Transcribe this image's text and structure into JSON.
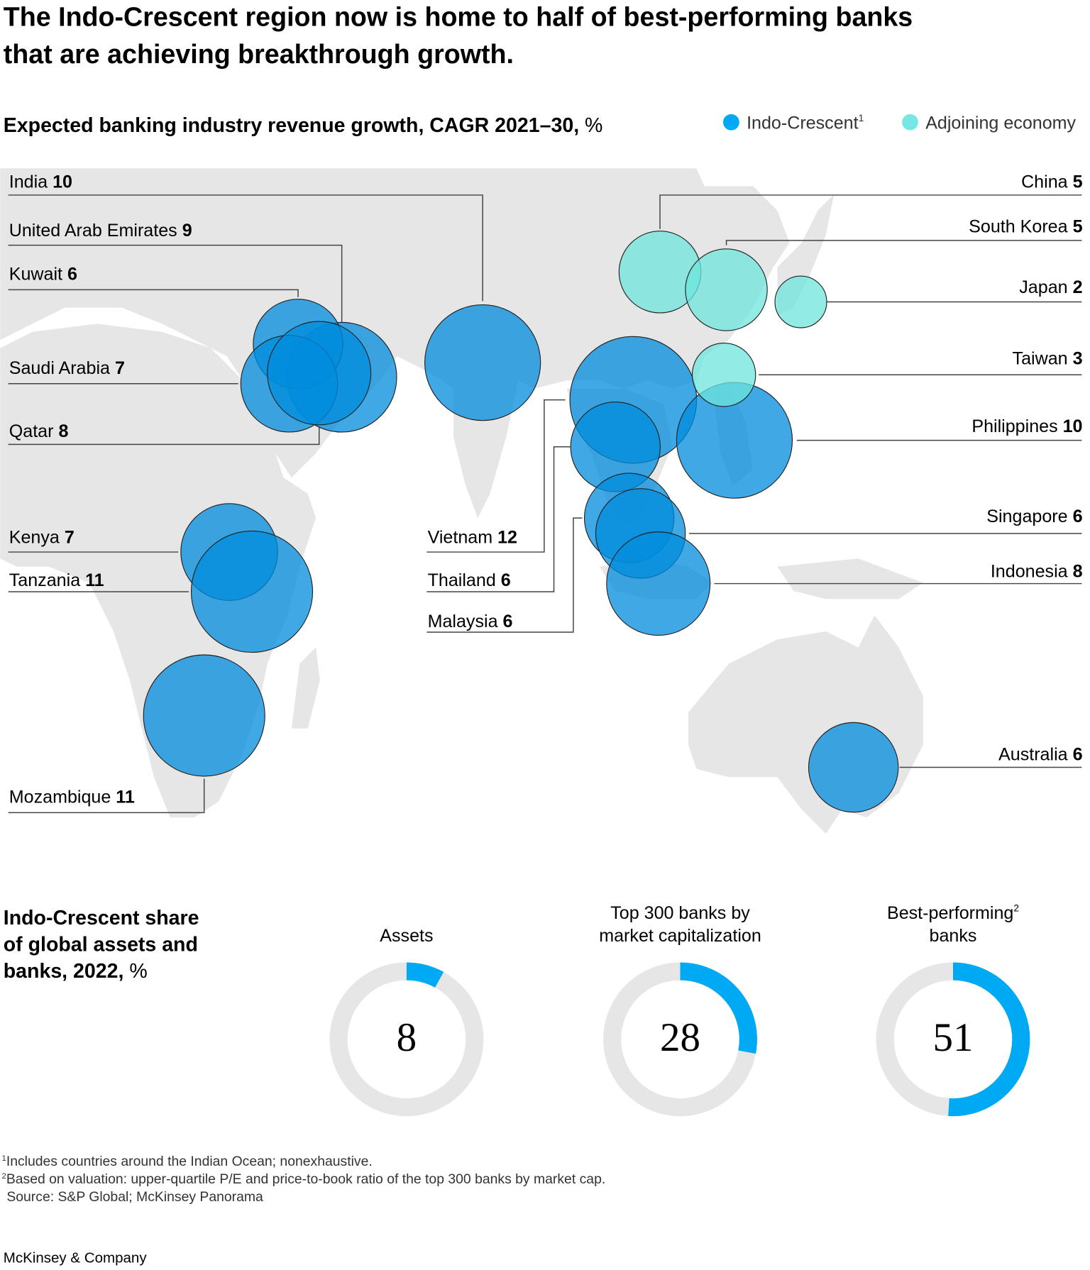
{
  "title_line1": "The Indo-Crescent region now is home to half of best-performing banks",
  "title_line2": "that are achieving breakthrough growth.",
  "map_subtitle_bold": "Expected banking industry revenue growth, CAGR 2021–30,",
  "map_subtitle_unit": " %",
  "legend": [
    {
      "label": "Indo-Crescent",
      "sup": "1",
      "color": "#00a9f4"
    },
    {
      "label": "Adjoining economy",
      "sup": "",
      "color": "#76e8e4"
    }
  ],
  "colors": {
    "indo": "#1fa9ec",
    "adjoining": "#76e8e4",
    "land": "#e6e6e6",
    "ring": "#e6e6e6",
    "ring_fill": "#00a9f4"
  },
  "chart_data": [
    {
      "type": "scatter",
      "title": "Expected banking industry revenue growth, CAGR 2021–30, %",
      "series": [
        {
          "name": "Indo-Crescent",
          "points": [
            {
              "country": "India",
              "value": 10
            },
            {
              "country": "United Arab Emirates",
              "value": 9
            },
            {
              "country": "Kuwait",
              "value": 6
            },
            {
              "country": "Saudi Arabia",
              "value": 7
            },
            {
              "country": "Qatar",
              "value": 8
            },
            {
              "country": "Kenya",
              "value": 7
            },
            {
              "country": "Tanzania",
              "value": 11
            },
            {
              "country": "Mozambique",
              "value": 11
            },
            {
              "country": "Vietnam",
              "value": 12
            },
            {
              "country": "Thailand",
              "value": 6
            },
            {
              "country": "Malaysia",
              "value": 6
            },
            {
              "country": "Philippines",
              "value": 10
            },
            {
              "country": "Singapore",
              "value": 6
            },
            {
              "country": "Indonesia",
              "value": 8
            },
            {
              "country": "Australia",
              "value": 6
            }
          ]
        },
        {
          "name": "Adjoining economy",
          "points": [
            {
              "country": "China",
              "value": 5
            },
            {
              "country": "South Korea",
              "value": 5
            },
            {
              "country": "Japan",
              "value": 2
            },
            {
              "country": "Taiwan",
              "value": 3
            }
          ]
        }
      ]
    },
    {
      "type": "pie",
      "title": "Indo-Crescent share of global assets and banks, 2022, %",
      "categories": [
        "Assets",
        "Top 300 banks by market capitalization",
        "Best-performing banks"
      ],
      "values": [
        8,
        28,
        51
      ]
    }
  ],
  "labels": {
    "India": "India",
    "UAE": "United Arab Emirates",
    "Kuwait": "Kuwait",
    "Saudi": "Saudi Arabia",
    "Qatar": "Qatar",
    "Kenya": "Kenya",
    "Tanzania": "Tanzania",
    "Mozambique": "Mozambique",
    "Vietnam": "Vietnam",
    "Thailand": "Thailand",
    "Malaysia": "Malaysia",
    "China": "China",
    "SouthKorea": "South Korea",
    "Japan": "Japan",
    "Taiwan": "Taiwan",
    "Philippines": "Philippines",
    "Singapore": "Singapore",
    "Indonesia": "Indonesia",
    "Australia": "Australia"
  },
  "values": {
    "India": "10",
    "UAE": "9",
    "Kuwait": "6",
    "Saudi": "7",
    "Qatar": "8",
    "Kenya": "7",
    "Tanzania": "11",
    "Mozambique": "11",
    "Vietnam": "12",
    "Thailand": "6",
    "Malaysia": "6",
    "China": "5",
    "SouthKorea": "5",
    "Japan": "2",
    "Taiwan": "3",
    "Philippines": "10",
    "Singapore": "6",
    "Indonesia": "8",
    "Australia": "6"
  },
  "share": {
    "title_line1": "Indo-Crescent share",
    "title_line2": "of global assets and",
    "title_line3_bold": "banks, 2022,",
    "title_line3_unit": " %",
    "donuts": [
      {
        "label_line1": "",
        "label_line2": "Assets",
        "sup": "",
        "value": "8",
        "fraction": 0.08
      },
      {
        "label_line1": "Top 300 banks by",
        "label_line2": "market capitalization",
        "sup": "",
        "value": "28",
        "fraction": 0.28
      },
      {
        "label_line1": "Best-performing",
        "label_line2": "banks",
        "sup": "2",
        "value": "51",
        "fraction": 0.51
      }
    ]
  },
  "footnotes": {
    "n1_sup": "1",
    "n1": "Includes countries around the Indian Ocean; nonexhaustive.",
    "n2_sup": "2",
    "n2": "Based on valuation: upper-quartile P/E and price-to-book ratio of the top 300 banks by market cap.",
    "source": "Source: S&P Global; McKinsey Panorama"
  },
  "brand": "McKinsey & Company"
}
